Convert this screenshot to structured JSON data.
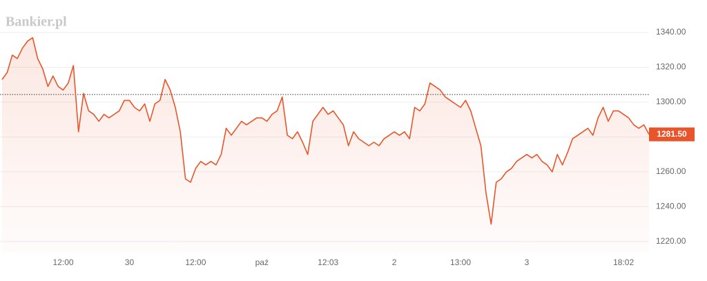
{
  "brand": "Bankier.pl",
  "chart_data": {
    "type": "line",
    "categories": [
      null,
      null,
      null,
      null,
      null,
      null,
      null,
      null,
      null,
      null,
      null,
      null,
      "12:00",
      null,
      null,
      null,
      null,
      null,
      null,
      null,
      null,
      null,
      null,
      null,
      null,
      "30",
      null,
      null,
      null,
      null,
      null,
      null,
      null,
      null,
      null,
      null,
      null,
      null,
      "12:00",
      null,
      null,
      null,
      null,
      null,
      null,
      null,
      null,
      null,
      null,
      null,
      null,
      "paź",
      null,
      null,
      null,
      null,
      null,
      null,
      null,
      null,
      null,
      null,
      null,
      null,
      "12:03",
      null,
      null,
      null,
      null,
      null,
      null,
      null,
      null,
      null,
      null,
      null,
      null,
      "2",
      null,
      null,
      null,
      null,
      null,
      null,
      null,
      null,
      null,
      null,
      null,
      null,
      "13:00",
      null,
      null,
      null,
      null,
      null,
      null,
      null,
      null,
      null,
      null,
      null,
      null,
      "3",
      null,
      null,
      null,
      null,
      null,
      null,
      null,
      null,
      null,
      null,
      null,
      null,
      null,
      null,
      null,
      null,
      null,
      null,
      "18:02",
      null,
      null,
      null,
      null,
      null
    ],
    "values": [
      1313,
      1317,
      1327,
      1325,
      1331,
      1335,
      1337,
      1325,
      1319,
      1309,
      1315,
      1309,
      1307,
      1311,
      1321,
      1283,
      1305,
      1295,
      1293,
      1289,
      1293,
      1291,
      1293,
      1295,
      1301,
      1301,
      1297,
      1295,
      1299,
      1289,
      1299,
      1301,
      1313,
      1307,
      1297,
      1283,
      1256,
      1254,
      1262,
      1266,
      1264,
      1266,
      1264,
      1270,
      1285,
      1281,
      1285,
      1289,
      1287,
      1289,
      1291,
      1291,
      1289,
      1293,
      1295,
      1303,
      1281,
      1279,
      1283,
      1277,
      1270,
      1289,
      1293,
      1297,
      1293,
      1295,
      1291,
      1287,
      1275,
      1283,
      1279,
      1277,
      1275,
      1277,
      1275,
      1279,
      1281,
      1283,
      1281,
      1283,
      1279,
      1297,
      1295,
      1299,
      1311,
      1309,
      1307,
      1303,
      1301,
      1299,
      1297,
      1301,
      1295,
      1285,
      1275,
      1248,
      1230,
      1254,
      1256,
      1260,
      1262,
      1266,
      1268,
      1270,
      1268,
      1270,
      1266,
      1264,
      1260,
      1270,
      1264,
      1271,
      1279,
      1281,
      1283,
      1285,
      1281,
      1291,
      1297,
      1289,
      1295,
      1295,
      1293,
      1291,
      1287,
      1285,
      1287,
      1281.5
    ],
    "last_value_label": "1281.50",
    "reference_line": 1304.4,
    "color": "#e8552a",
    "ylim": [
      1214,
      1350
    ],
    "yticks": [
      {
        "value": 1220,
        "label": "1220.00"
      },
      {
        "value": 1240,
        "label": "1240.00"
      },
      {
        "value": 1260,
        "label": "1260.00"
      },
      {
        "value": 1280,
        "label": "1280.00"
      },
      {
        "value": 1300,
        "label": "1300.00"
      },
      {
        "value": 1320,
        "label": "1320.00"
      },
      {
        "value": 1340,
        "label": "1340.00"
      }
    ],
    "grid": true
  }
}
